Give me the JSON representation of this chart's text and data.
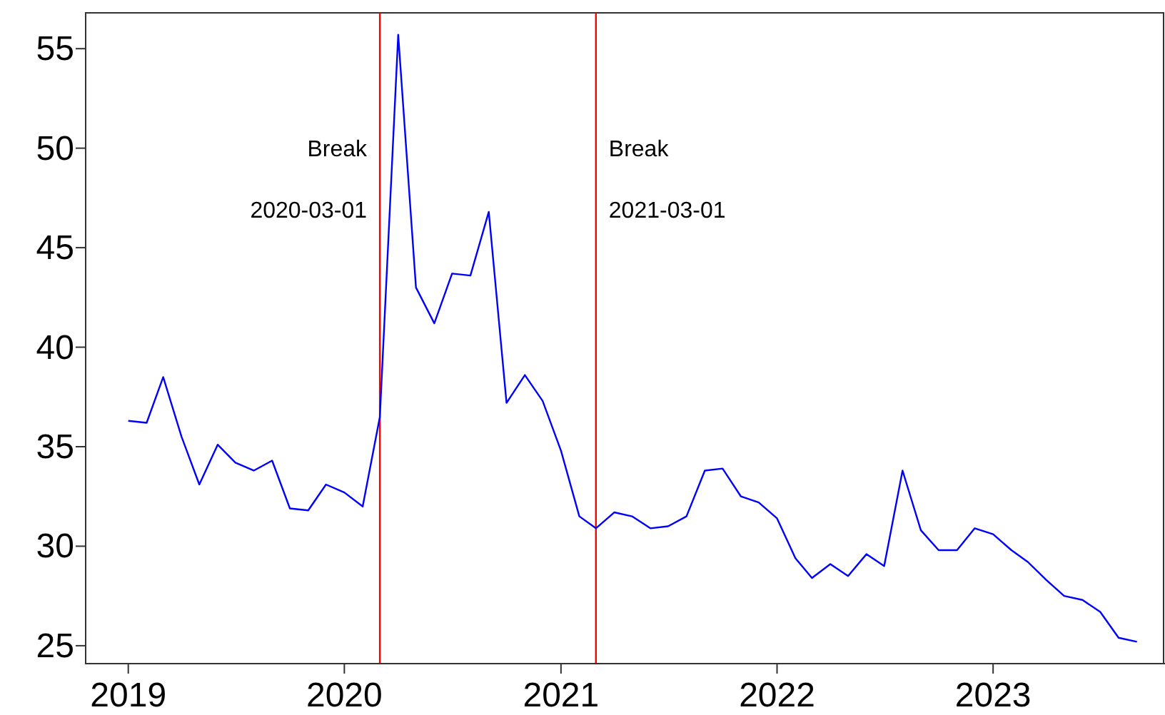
{
  "chart_data": {
    "type": "line",
    "x": [
      "2019-01",
      "2019-02",
      "2019-03",
      "2019-04",
      "2019-05",
      "2019-06",
      "2019-07",
      "2019-08",
      "2019-09",
      "2019-10",
      "2019-11",
      "2019-12",
      "2020-01",
      "2020-02",
      "2020-03",
      "2020-04",
      "2020-05",
      "2020-06",
      "2020-07",
      "2020-08",
      "2020-09",
      "2020-10",
      "2020-11",
      "2020-12",
      "2021-01",
      "2021-02",
      "2021-03",
      "2021-04",
      "2021-05",
      "2021-06",
      "2021-07",
      "2021-08",
      "2021-09",
      "2021-10",
      "2021-11",
      "2021-12",
      "2022-01",
      "2022-02",
      "2022-03",
      "2022-04",
      "2022-05",
      "2022-06",
      "2022-07",
      "2022-08",
      "2022-09",
      "2022-10",
      "2022-11",
      "2022-12",
      "2023-01",
      "2023-02",
      "2023-03",
      "2023-04",
      "2023-05",
      "2023-06",
      "2023-07",
      "2023-08",
      "2023-09"
    ],
    "series": [
      {
        "color": "#0000ff",
        "values": [
          36.3,
          36.2,
          38.5,
          35.5,
          33.1,
          35.1,
          34.2,
          33.8,
          34.3,
          31.9,
          31.8,
          33.1,
          32.7,
          32.0,
          36.5,
          55.7,
          43.0,
          41.2,
          43.7,
          43.6,
          46.8,
          37.2,
          38.6,
          37.3,
          34.8,
          31.5,
          30.9,
          31.7,
          31.5,
          30.9,
          31.0,
          31.5,
          33.8,
          33.9,
          32.5,
          32.2,
          31.4,
          29.4,
          28.4,
          29.1,
          28.5,
          29.6,
          29.0,
          33.8,
          30.8,
          29.8,
          29.8,
          30.9,
          30.6,
          29.8,
          29.2,
          28.3,
          27.5,
          27.3,
          26.7,
          25.4,
          25.2
        ]
      }
    ],
    "xlim": [
      "2018-10-21",
      "2023-10-16"
    ],
    "xticks": [
      {
        "value": "2019-01-01",
        "label": "2019"
      },
      {
        "value": "2020-01-01",
        "label": "2020"
      },
      {
        "value": "2021-01-01",
        "label": "2021"
      },
      {
        "value": "2022-01-01",
        "label": "2022"
      },
      {
        "value": "2023-01-01",
        "label": "2023"
      }
    ],
    "ylim": [
      24.1,
      56.8
    ],
    "yticks": [
      25,
      30,
      35,
      40,
      45,
      50,
      55
    ],
    "ref_lines": [
      {
        "axis": "x",
        "value": "2020-03-01",
        "label": "Break\n2020-03-01",
        "color": "#ff0000"
      },
      {
        "axis": "x",
        "value": "2021-03-01",
        "label": "Break\n2021-03-01",
        "color": "#ff0000"
      }
    ],
    "grid": false,
    "line_style": "solid"
  }
}
